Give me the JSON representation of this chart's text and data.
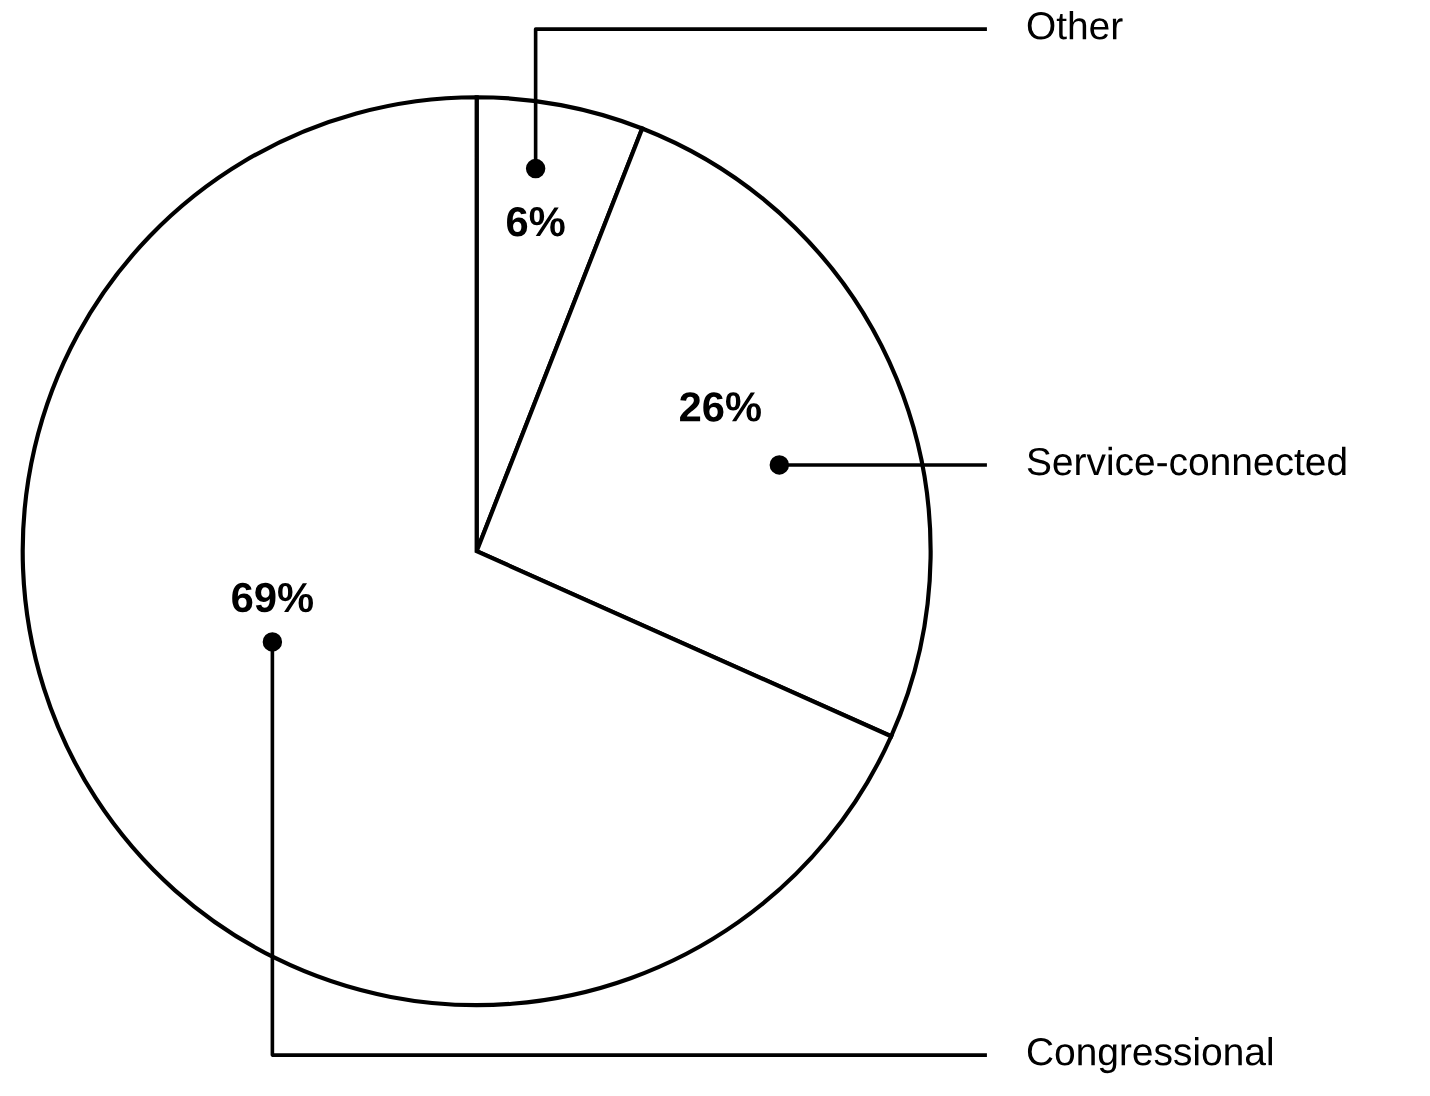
{
  "chart_data": {
    "type": "pie",
    "categories": [
      "Other",
      "Service-connected",
      "Congressional"
    ],
    "values": [
      6,
      26,
      69
    ],
    "colors": [
      "#ffffff",
      "#ffffff",
      "#ffffff"
    ],
    "value_labels": [
      "6%",
      "26%",
      "69%"
    ]
  }
}
